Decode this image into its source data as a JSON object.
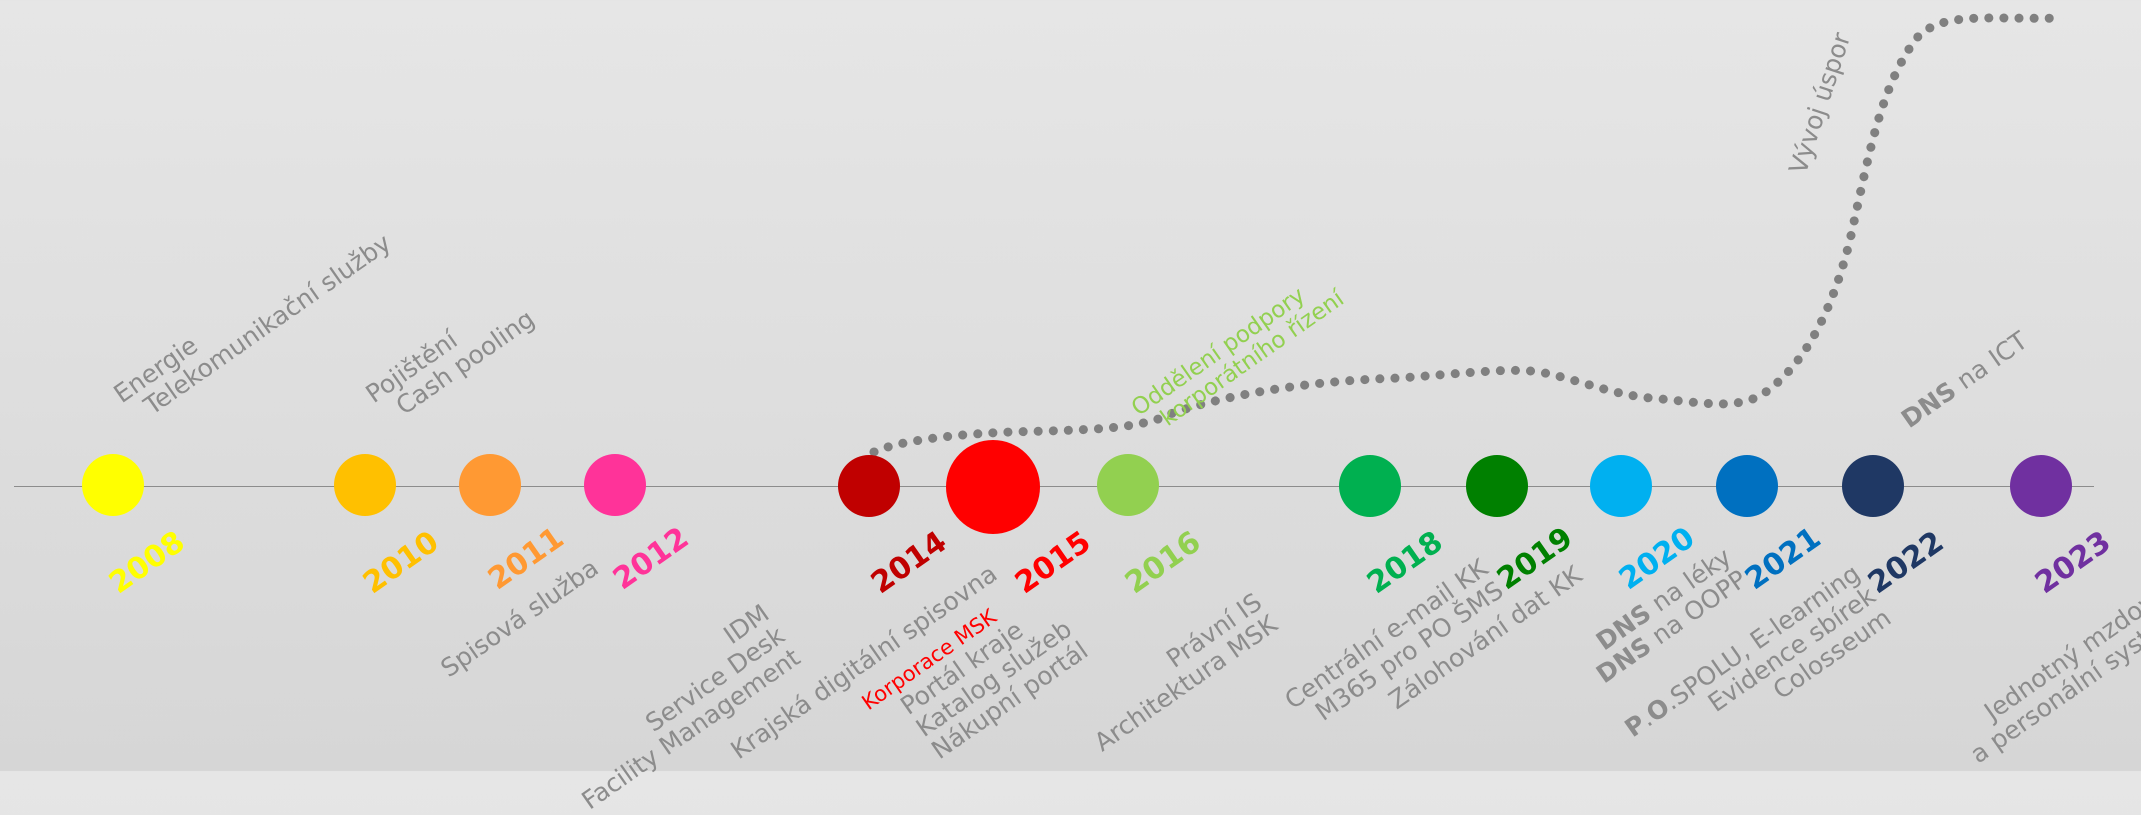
{
  "milestones": [
    {
      "year": "2008",
      "color": "#ffff00",
      "above": [
        "Energie",
        "Telekomunikační služby"
      ],
      "below": []
    },
    {
      "year": "2010",
      "color": "#ffc000",
      "above": [
        "Pojištění",
        "Cash pooling"
      ],
      "below": []
    },
    {
      "year": "2011",
      "color": "#ff9933",
      "above": [],
      "below": [
        "Spisová služba"
      ]
    },
    {
      "year": "2012",
      "color": "#ff3399",
      "above": [],
      "below": [
        "IDM",
        "Service Desk",
        "Facility Management"
      ]
    },
    {
      "year": "2014",
      "color": "#c00000",
      "above": [],
      "below": [
        "Krajská digitální spisovna"
      ]
    },
    {
      "year": "2015",
      "color": "#ff0000",
      "above": [],
      "below_highlight": "Korporace MSK",
      "below": [
        "Portál kraje",
        "Katalog služeb",
        "Nákupní portál"
      ]
    },
    {
      "year": "2016",
      "color": "#92d050",
      "above": [],
      "below": [
        "Právní IS",
        "Architektura MSK"
      ]
    },
    {
      "year": "2018",
      "color": "#00b050",
      "above": [],
      "below": [
        "Centrální e-mail KK",
        "M365 pro PO ŠMS"
      ]
    },
    {
      "year": "2019",
      "color": "#008000",
      "above": [],
      "below": [
        "Zálohování dat KK"
      ]
    },
    {
      "year": "2020",
      "color": "#00b0f0",
      "above": [],
      "below_rich": [
        [
          "DNS",
          " na léky"
        ],
        [
          "DNS",
          " na OOPP"
        ]
      ]
    },
    {
      "year": "2021",
      "color": "#0070c0",
      "above": [],
      "below_rich": [
        [
          "P",
          ".",
          "O",
          ".SPOLU, E-learning"
        ]
      ],
      "below": [
        "Evidence sbírek",
        "Colosseum"
      ]
    },
    {
      "year": "2022",
      "color": "#1f3864",
      "above_rich": [
        "DNS",
        " na ICT"
      ],
      "below": []
    },
    {
      "year": "2023",
      "color": "#7030a0",
      "above": [],
      "below": [
        "Jednotný mzdový",
        "a personální systém"
      ]
    }
  ],
  "annotations": {
    "support_note": [
      "Oddělení podpory",
      "korporátního řízení"
    ],
    "savings_curve_label": "Vývoj úspor"
  },
  "colors": {
    "axis": "#8c8c8c",
    "text_gray": "#8c8c8c",
    "curve_dots": "#808080",
    "support_note": "#92d050",
    "highlight_red": "#ff0000"
  }
}
